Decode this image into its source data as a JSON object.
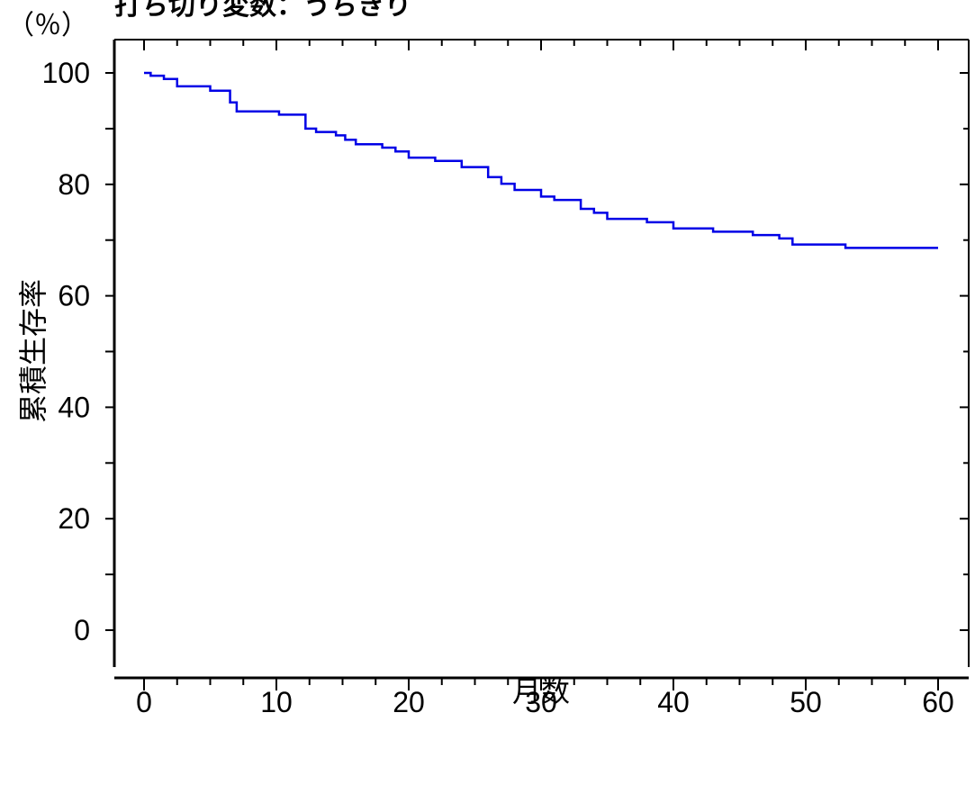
{
  "chart_data": {
    "type": "line",
    "title": "打ち切り変数：うちきり",
    "xlabel": "月数",
    "ylabel": "累積生存率",
    "yunit": "（％）",
    "xlim": [
      -2,
      62
    ],
    "ylim": [
      -6,
      106
    ],
    "xticks": [
      0,
      10,
      20,
      30,
      40,
      50,
      60
    ],
    "yticks": [
      0,
      20,
      40,
      60,
      80,
      100
    ],
    "xtick_labels": [
      "0",
      "10",
      "20",
      "30",
      "40",
      "50",
      "60"
    ],
    "ytick_labels": [
      "0",
      "20",
      "40",
      "60",
      "80",
      "100"
    ],
    "line_color": "#0000e6",
    "grid": false,
    "series": [
      {
        "step": true,
        "x": [
          0,
          0.5,
          1.5,
          2.5,
          5,
          6.5,
          7,
          10.2,
          12.2,
          13,
          14.5,
          15.2,
          16,
          18,
          19,
          20,
          22,
          24,
          26,
          27,
          28,
          30,
          31,
          33,
          34,
          35,
          38,
          40,
          43,
          46,
          48,
          49,
          53,
          60
        ],
        "y": [
          100,
          99.5,
          98.9,
          97.6,
          96.8,
          94.7,
          93.1,
          92.5,
          90.0,
          89.4,
          88.8,
          88.0,
          87.2,
          86.6,
          85.9,
          84.8,
          84.2,
          83.1,
          81.3,
          80.1,
          79.0,
          77.8,
          77.2,
          75.6,
          74.9,
          73.8,
          73.2,
          72.1,
          71.5,
          70.9,
          70.3,
          69.2,
          68.6,
          68.6
        ]
      }
    ]
  }
}
